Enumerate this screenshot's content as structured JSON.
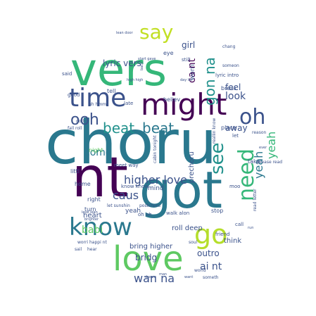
{
  "words": [
    {
      "text": "choru",
      "color": "#2a788e"
    },
    {
      "text": "vers",
      "color": "#35b779"
    },
    {
      "text": "got",
      "color": "#2a788e"
    },
    {
      "text": "nt",
      "color": "#440154"
    },
    {
      "text": "might",
      "color": "#440154"
    },
    {
      "text": "time",
      "color": "#3b528b"
    },
    {
      "text": "love",
      "color": "#5ec962"
    },
    {
      "text": "know",
      "color": "#2a788e"
    },
    {
      "text": "go",
      "color": "#b5de2b"
    },
    {
      "text": "need",
      "color": "#35b779"
    },
    {
      "text": "see",
      "color": "#21918c"
    },
    {
      "text": "oh",
      "color": "#3b528b"
    },
    {
      "text": "say",
      "color": "#c2df23"
    },
    {
      "text": "ooh",
      "color": "#3b528b"
    },
    {
      "text": "beat",
      "color": "#21918c"
    },
    {
      "text": "beat",
      "color": "#2a788e"
    },
    {
      "text": "gon na",
      "color": "#21918c"
    },
    {
      "text": "yeah",
      "color": "#2a788e"
    },
    {
      "text": "yeah",
      "color": "#35b779"
    },
    {
      "text": "higher love",
      "color": "#3b528b"
    },
    {
      "text": "wan na",
      "color": "#3b528b"
    },
    {
      "text": "babi",
      "color": "#5ec962"
    },
    {
      "text": "caus",
      "color": "#3b528b"
    },
    {
      "text": "come",
      "color": "#2a788e"
    },
    {
      "text": "look",
      "color": "#3b528b"
    },
    {
      "text": "feel",
      "color": "#3b528b"
    },
    {
      "text": "girl",
      "color": "#3b528b"
    },
    {
      "text": "away",
      "color": "#3b528b"
    },
    {
      "text": "lyric vers",
      "color": "#3b528b"
    },
    {
      "text": "ca nt",
      "color": "#440154"
    },
    {
      "text": "bring higher",
      "color": "#3b528b"
    },
    {
      "text": "ai nt",
      "color": "#3b528b"
    },
    {
      "text": "outro",
      "color": "#3b528b"
    },
    {
      "text": "bridg",
      "color": "#3b528b"
    },
    {
      "text": "think",
      "color": "#3b528b"
    },
    {
      "text": "prechoru",
      "color": "#3b528b"
    },
    {
      "text": "heart",
      "color": "#3b528b"
    },
    {
      "text": "yeah",
      "color": "#3b528b"
    },
    {
      "text": "mind",
      "color": "#3b528b"
    },
    {
      "text": "worri",
      "color": "#3b528b"
    },
    {
      "text": "eye",
      "color": "#3b528b"
    },
    {
      "text": "lean door",
      "color": "#3b528b"
    },
    {
      "text": "still",
      "color": "#3b528b"
    },
    {
      "text": "someon",
      "color": "#3b528b"
    },
    {
      "text": "break",
      "color": "#3b528b"
    },
    {
      "text": "tell",
      "color": "#3b528b"
    },
    {
      "text": "believ",
      "color": "#3b528b"
    },
    {
      "text": "late",
      "color": "#3b528b"
    },
    {
      "text": "said",
      "color": "#3b528b"
    },
    {
      "text": "good",
      "color": "#3b528b"
    },
    {
      "text": "noth",
      "color": "#3b528b"
    },
    {
      "text": "night",
      "color": "#5ec962"
    },
    {
      "text": "littl",
      "color": "#3b528b"
    },
    {
      "text": "home",
      "color": "#3b528b"
    },
    {
      "text": "right",
      "color": "#3b528b"
    },
    {
      "text": "turn",
      "color": "#3b528b"
    },
    {
      "text": "take",
      "color": "#3b528b"
    },
    {
      "text": "place",
      "color": "#3b528b"
    },
    {
      "text": "let",
      "color": "#3b528b"
    },
    {
      "text": "moo",
      "color": "#3b528b"
    },
    {
      "text": "stop",
      "color": "#3b528b"
    },
    {
      "text": "call",
      "color": "#3b528b"
    },
    {
      "text": "friend",
      "color": "#3b528b"
    },
    {
      "text": "roll deep",
      "color": "#3b528b"
    },
    {
      "text": "read letter",
      "color": "#3b528b"
    },
    {
      "text": "walk alon",
      "color": "#3b528b"
    },
    {
      "text": "oh oh",
      "color": "#3b528b"
    },
    {
      "text": "meet way",
      "color": "#3b528b"
    },
    {
      "text": "know know",
      "color": "#3b528b"
    },
    {
      "text": "let sunshin",
      "color": "#3b528b"
    },
    {
      "text": "postchoru",
      "color": "#3b528b"
    },
    {
      "text": "worri happi nt",
      "color": "#3b528b"
    },
    {
      "text": "please read",
      "color": "#3b528b"
    },
    {
      "text": "lyric intro",
      "color": "#3b528b"
    },
    {
      "text": "start gave",
      "color": "#3b528b"
    },
    {
      "text": "day let",
      "color": "#3b528b"
    },
    {
      "text": "high high",
      "color": "#3b528b"
    },
    {
      "text": "back",
      "color": "#3b528b"
    },
    {
      "text": "cabin tonight",
      "color": "#3b528b"
    },
    {
      "text": "uh hmm",
      "color": "#3b528b"
    },
    {
      "text": "fall roll",
      "color": "#3b528b"
    },
    {
      "text": "reason",
      "color": "#3b528b"
    },
    {
      "text": "soul",
      "color": "#3b528b"
    },
    {
      "text": "man",
      "color": "#3b528b"
    },
    {
      "text": "world",
      "color": "#3b528b"
    },
    {
      "text": "dream",
      "color": "#3b528b"
    },
    {
      "text": "someth",
      "color": "#3b528b"
    },
    {
      "text": "want",
      "color": "#3b528b"
    },
    {
      "text": "hear",
      "color": "#3b528b"
    },
    {
      "text": "sail",
      "color": "#3b528b"
    },
    {
      "text": "chang",
      "color": "#3b528b"
    },
    {
      "text": "realiin know",
      "color": "#3b528b"
    },
    {
      "text": "brighter",
      "color": "#3b528b"
    },
    {
      "text": "love lean",
      "color": "#3b528b"
    },
    {
      "text": "run",
      "color": "#3b528b"
    },
    {
      "text": "ever",
      "color": "#3b528b"
    }
  ]
}
